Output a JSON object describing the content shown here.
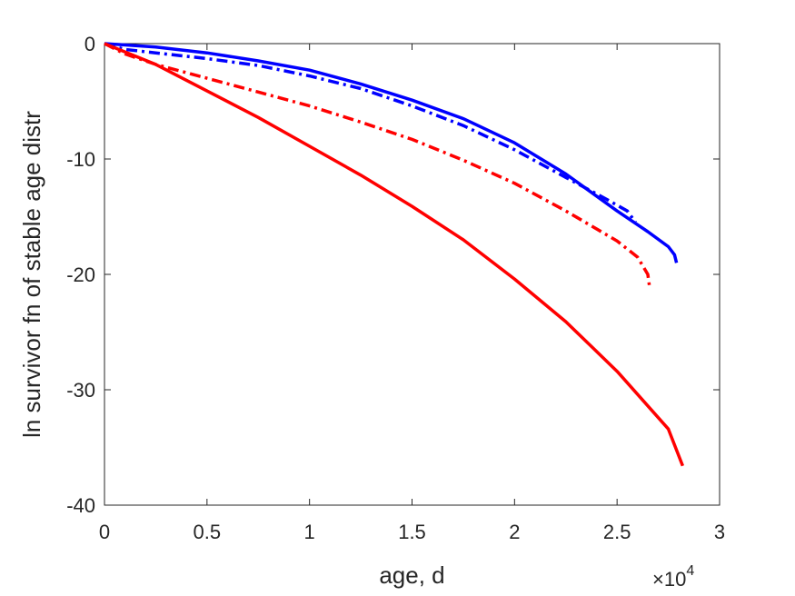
{
  "chart_data": {
    "type": "line",
    "title": "",
    "xlabel": "age, d",
    "ylabel": "ln survivor fn of stable age distr",
    "x_multiplier_label": "×10",
    "x_multiplier_exponent": "4",
    "xlim": [
      0,
      30000
    ],
    "ylim": [
      -40,
      0
    ],
    "xticks": [
      0,
      5000,
      10000,
      15000,
      20000,
      25000,
      30000
    ],
    "xtick_labels": [
      "0",
      "0.5",
      "1",
      "1.5",
      "2",
      "2.5",
      "3"
    ],
    "yticks": [
      0,
      -10,
      -20,
      -30,
      -40
    ],
    "ytick_labels": [
      "0",
      "-10",
      "-20",
      "-30",
      "-40"
    ],
    "grid": false,
    "legend": "none",
    "series": [
      {
        "color": "#0000ff",
        "style": "solid",
        "x": [
          0,
          2500,
          5000,
          7500,
          10000,
          12500,
          15000,
          17500,
          20000,
          22500,
          25000,
          26500,
          27500,
          27800,
          27900
        ],
        "y": [
          0,
          -0.3,
          -0.8,
          -1.5,
          -2.3,
          -3.5,
          -4.9,
          -6.5,
          -8.6,
          -11.3,
          -14.5,
          -16.3,
          -17.6,
          -18.3,
          -19.0
        ]
      },
      {
        "color": "#0000ff",
        "style": "dashdot",
        "x": [
          0,
          1000,
          2500,
          5000,
          7500,
          10000,
          12500,
          15000,
          17500,
          20000,
          22500,
          24500,
          25500,
          25900
        ],
        "y": [
          0,
          -0.5,
          -0.8,
          -1.3,
          -1.9,
          -2.8,
          -3.9,
          -5.4,
          -7.1,
          -9.2,
          -11.6,
          -13.5,
          -14.5,
          -15.5
        ]
      },
      {
        "color": "#ff0000",
        "style": "dashdot",
        "x": [
          0,
          1000,
          2500,
          5000,
          7500,
          10000,
          12500,
          15000,
          17500,
          20000,
          22500,
          25000,
          26000,
          26500,
          26600
        ],
        "y": [
          0,
          -0.9,
          -1.8,
          -3.0,
          -4.2,
          -5.4,
          -6.8,
          -8.3,
          -10.1,
          -12.1,
          -14.5,
          -17.1,
          -18.5,
          -20.0,
          -21.3
        ]
      },
      {
        "color": "#ff0000",
        "style": "solid",
        "x": [
          0,
          2500,
          5000,
          7500,
          10000,
          12500,
          15000,
          17500,
          20000,
          22500,
          25000,
          27500,
          28200
        ],
        "y": [
          0,
          -1.8,
          -4.1,
          -6.4,
          -8.9,
          -11.4,
          -14.1,
          -17.0,
          -20.4,
          -24.1,
          -28.4,
          -33.4,
          -36.6
        ]
      }
    ]
  }
}
